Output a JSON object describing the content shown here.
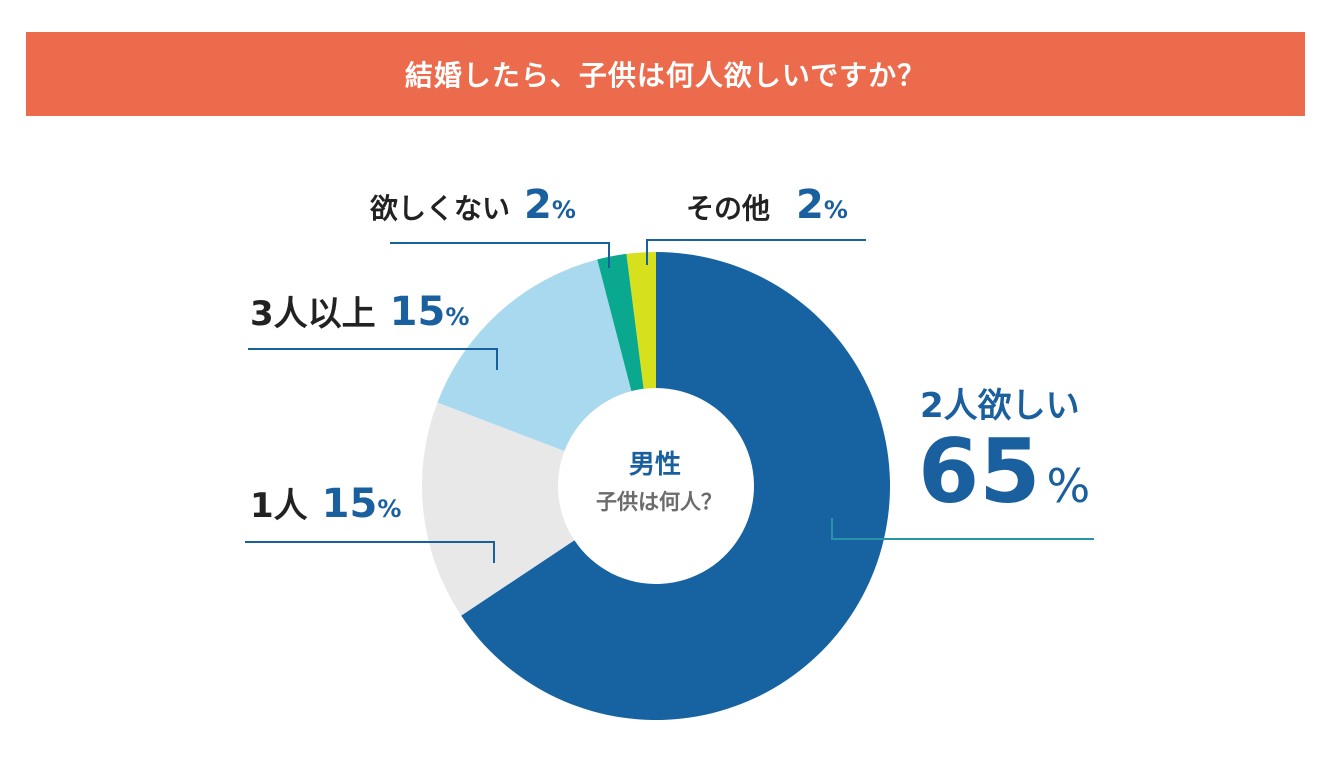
{
  "header": {
    "title": "結婚したら、子供は何人欲しいですか？"
  },
  "chart_data": {
    "type": "pie",
    "center_label": {
      "main": "男性",
      "sub": "子供は何人？"
    },
    "unit": "%",
    "slices": [
      {
        "label": "その他",
        "value": 2,
        "color": "#d6e01c"
      },
      {
        "label": "2人欲しい",
        "value": 65,
        "color": "#1763a1"
      },
      {
        "label": "1人",
        "value": 15,
        "color": "#e8e8e8"
      },
      {
        "label": "3人以上",
        "value": 15,
        "color": "#a9d9ee"
      },
      {
        "label": "欲しくない",
        "value": 2,
        "color": "#0aa88e"
      }
    ]
  },
  "labels": {
    "none": {
      "name": "欲しくない",
      "value": "2",
      "unit": "%"
    },
    "other": {
      "name": "その他",
      "value": "2",
      "unit": "%"
    },
    "three": {
      "name": "3人以上",
      "value": "15",
      "unit": "%"
    },
    "one": {
      "name": "1人",
      "value": "15",
      "unit": "%"
    },
    "two_name": "2人欲しい",
    "two_value": "65",
    "two_unit": "%"
  },
  "colors": {
    "accent": "#1a5f9e",
    "header": "#ec6b4c",
    "leader": "#1a5f9e",
    "leader_main": "#2a93a8"
  }
}
